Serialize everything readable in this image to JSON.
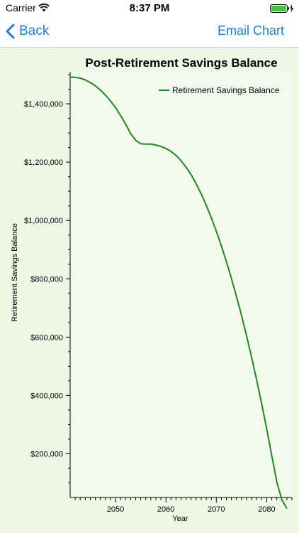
{
  "status_bar": {
    "carrier": "Carrier",
    "time": "8:37 PM",
    "wifi_icon": "wifi-icon",
    "battery_icon": "battery-charging-icon"
  },
  "navbar": {
    "back_label": "Back",
    "back_icon": "chevron-left-icon",
    "email_label": "Email Chart"
  },
  "colors": {
    "accent": "#1a7cf0",
    "line": "#1e8a1e",
    "chart_bg": "#eef6e6",
    "battery": "#3cc83c"
  },
  "chart_data": {
    "type": "line",
    "title": "Post-Retirement Savings Balance",
    "xlabel": "Year",
    "ylabel": "Retirement Savings Balance",
    "xlim": [
      2041,
      2085
    ],
    "ylim": [
      50000,
      1510000
    ],
    "xticks": [
      2050,
      2060,
      2070,
      2080
    ],
    "yticks": [
      200000,
      400000,
      600000,
      800000,
      1000000,
      1200000,
      1400000
    ],
    "ytick_labels": [
      "$200,000",
      "$400,000",
      "$600,000",
      "$800,000",
      "$1,000,000",
      "$1,200,000",
      "$1,400,000"
    ],
    "legend_position": "top-right",
    "series": [
      {
        "name": "Retirement Savings Balance",
        "x": [
          2041,
          2042,
          2043,
          2044,
          2045,
          2046,
          2047,
          2048,
          2049,
          2050,
          2051,
          2052,
          2053,
          2054,
          2055,
          2056,
          2057,
          2058,
          2059,
          2060,
          2061,
          2062,
          2063,
          2064,
          2065,
          2066,
          2067,
          2068,
          2069,
          2070,
          2071,
          2072,
          2073,
          2074,
          2075,
          2076,
          2077,
          2078,
          2079,
          2080,
          2081,
          2082,
          2083,
          2084
        ],
        "y": [
          1492000,
          1491000,
          1488000,
          1482000,
          1473000,
          1462000,
          1447000,
          1430000,
          1410000,
          1388000,
          1360000,
          1330000,
          1298000,
          1275000,
          1263000,
          1262000,
          1262000,
          1259000,
          1254000,
          1247000,
          1237000,
          1223000,
          1205000,
          1183000,
          1157000,
          1126000,
          1091000,
          1052000,
          1009000,
          963000,
          913000,
          859000,
          801000,
          739000,
          674000,
          604000,
          531000,
          453000,
          372000,
          285000,
          194000,
          103000,
          42000,
          12000
        ]
      }
    ]
  }
}
